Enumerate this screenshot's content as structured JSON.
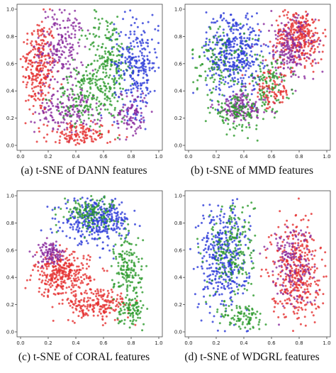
{
  "colors": {
    "red": "#e53030",
    "purple": "#8a2a9e",
    "green": "#2c9a2c",
    "blue": "#2a3ad8",
    "frame": "#444444"
  },
  "chart_data": [
    {
      "type": "scatter",
      "caption": "(a) t-SNE of DANN features",
      "xlim": [
        0,
        1
      ],
      "ylim": [
        0,
        1
      ],
      "xticks": [
        "0.0",
        "0.2",
        "0.4",
        "0.6",
        "0.8",
        "1.0"
      ],
      "yticks": [
        "0.0",
        "0.2",
        "0.4",
        "0.6",
        "0.8",
        "1.0"
      ],
      "grid": false,
      "series": [
        {
          "color": "red",
          "cx": 0.13,
          "cy": 0.58,
          "sx": 0.06,
          "sy": 0.18,
          "n": 260
        },
        {
          "color": "purple",
          "cx": 0.3,
          "cy": 0.72,
          "sx": 0.08,
          "sy": 0.15,
          "n": 200
        },
        {
          "color": "purple",
          "cx": 0.35,
          "cy": 0.25,
          "sx": 0.12,
          "sy": 0.08,
          "n": 160
        },
        {
          "color": "red",
          "cx": 0.42,
          "cy": 0.07,
          "sx": 0.12,
          "sy": 0.05,
          "n": 140
        },
        {
          "color": "green",
          "cx": 0.63,
          "cy": 0.58,
          "sx": 0.08,
          "sy": 0.2,
          "n": 260
        },
        {
          "color": "green",
          "cx": 0.45,
          "cy": 0.35,
          "sx": 0.1,
          "sy": 0.1,
          "n": 120
        },
        {
          "color": "blue",
          "cx": 0.84,
          "cy": 0.6,
          "sx": 0.08,
          "sy": 0.18,
          "n": 260
        },
        {
          "color": "purple",
          "cx": 0.8,
          "cy": 0.22,
          "sx": 0.06,
          "sy": 0.1,
          "n": 90
        }
      ]
    },
    {
      "type": "scatter",
      "caption": "(b) t-SNE of MMD features",
      "xlim": [
        0,
        1
      ],
      "ylim": [
        0,
        1
      ],
      "xticks": [
        "0.0",
        "0.2",
        "0.4",
        "0.6",
        "0.8",
        "1.0"
      ],
      "yticks": [
        "0.0",
        "0.2",
        "0.4",
        "0.6",
        "0.8",
        "1.0"
      ],
      "grid": false,
      "series": [
        {
          "color": "blue",
          "cx": 0.33,
          "cy": 0.68,
          "sx": 0.1,
          "sy": 0.16,
          "n": 420
        },
        {
          "color": "green",
          "cx": 0.22,
          "cy": 0.62,
          "sx": 0.1,
          "sy": 0.14,
          "n": 120
        },
        {
          "color": "red",
          "cx": 0.8,
          "cy": 0.8,
          "sx": 0.09,
          "sy": 0.1,
          "n": 300
        },
        {
          "color": "purple",
          "cx": 0.74,
          "cy": 0.7,
          "sx": 0.09,
          "sy": 0.12,
          "n": 200
        },
        {
          "color": "green",
          "cx": 0.58,
          "cy": 0.45,
          "sx": 0.08,
          "sy": 0.1,
          "n": 110
        },
        {
          "color": "purple",
          "cx": 0.38,
          "cy": 0.28,
          "sx": 0.1,
          "sy": 0.06,
          "n": 140
        },
        {
          "color": "green",
          "cx": 0.35,
          "cy": 0.24,
          "sx": 0.09,
          "sy": 0.06,
          "n": 120
        },
        {
          "color": "red",
          "cx": 0.6,
          "cy": 0.4,
          "sx": 0.07,
          "sy": 0.07,
          "n": 80
        }
      ]
    },
    {
      "type": "scatter",
      "caption": "(c) t-SNE of CORAL features",
      "xlim": [
        0,
        1
      ],
      "ylim": [
        0,
        1
      ],
      "xticks": [
        "0.0",
        "0.2",
        "0.4",
        "0.6",
        "0.8",
        "1.0"
      ],
      "yticks": [
        "0.0",
        "0.2",
        "0.4",
        "0.6",
        "0.8",
        "1.0"
      ],
      "grid": false,
      "series": [
        {
          "color": "blue",
          "cx": 0.55,
          "cy": 0.82,
          "sx": 0.12,
          "sy": 0.08,
          "n": 360
        },
        {
          "color": "green",
          "cx": 0.5,
          "cy": 0.88,
          "sx": 0.1,
          "sy": 0.06,
          "n": 140
        },
        {
          "color": "green",
          "cx": 0.78,
          "cy": 0.45,
          "sx": 0.05,
          "sy": 0.14,
          "n": 160
        },
        {
          "color": "red",
          "cx": 0.3,
          "cy": 0.42,
          "sx": 0.1,
          "sy": 0.08,
          "n": 320
        },
        {
          "color": "purple",
          "cx": 0.22,
          "cy": 0.58,
          "sx": 0.05,
          "sy": 0.04,
          "n": 100
        },
        {
          "color": "red",
          "cx": 0.55,
          "cy": 0.2,
          "sx": 0.12,
          "sy": 0.06,
          "n": 200
        },
        {
          "color": "green",
          "cx": 0.8,
          "cy": 0.16,
          "sx": 0.05,
          "sy": 0.05,
          "n": 80
        }
      ]
    },
    {
      "type": "scatter",
      "caption": "(d) t-SNE of WDGRL features",
      "xlim": [
        0,
        1
      ],
      "ylim": [
        0,
        1
      ],
      "xticks": [
        "0.0",
        "0.2",
        "0.4",
        "0.6",
        "0.8",
        "1.0"
      ],
      "yticks": [
        "0.0",
        "0.2",
        "0.4",
        "0.6",
        "0.8",
        "1.0"
      ],
      "grid": false,
      "series": [
        {
          "color": "blue",
          "cx": 0.25,
          "cy": 0.55,
          "sx": 0.09,
          "sy": 0.2,
          "n": 380
        },
        {
          "color": "green",
          "cx": 0.32,
          "cy": 0.62,
          "sx": 0.08,
          "sy": 0.2,
          "n": 200
        },
        {
          "color": "green",
          "cx": 0.4,
          "cy": 0.1,
          "sx": 0.08,
          "sy": 0.06,
          "n": 90
        },
        {
          "color": "red",
          "cx": 0.78,
          "cy": 0.45,
          "sx": 0.09,
          "sy": 0.18,
          "n": 380
        },
        {
          "color": "purple",
          "cx": 0.74,
          "cy": 0.5,
          "sx": 0.08,
          "sy": 0.16,
          "n": 160
        }
      ]
    }
  ]
}
